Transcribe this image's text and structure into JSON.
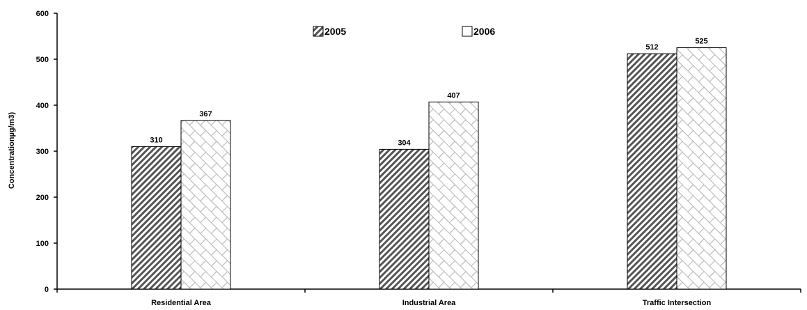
{
  "chart_data": {
    "type": "bar",
    "ylabel": "Concentrationµg/m3)",
    "ylim": [
      0,
      600
    ],
    "yticks": [
      0,
      100,
      200,
      300,
      400,
      500,
      600
    ],
    "categories": [
      "Residential Area",
      "Industrial Area",
      "Traffic Intersection"
    ],
    "series": [
      {
        "name": "2005",
        "values": [
          310,
          304,
          512
        ],
        "pattern": "diagonal-hatch"
      },
      {
        "name": "2006",
        "values": [
          367,
          407,
          525
        ],
        "pattern": "brick"
      }
    ],
    "legend_position": "top-center",
    "grid": false
  }
}
